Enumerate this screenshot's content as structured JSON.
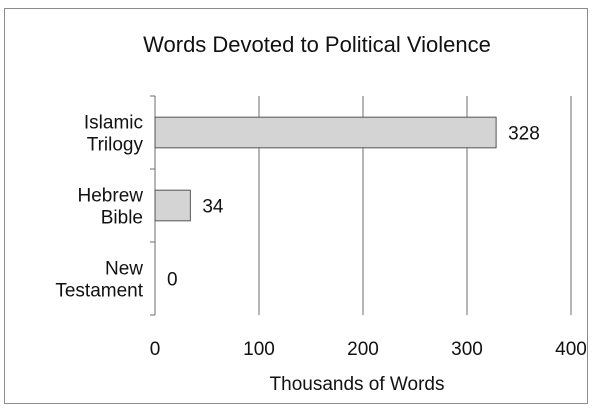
{
  "chart_data": {
    "type": "bar",
    "orientation": "horizontal",
    "title": "Words Devoted to Political Violence",
    "xlabel": "Thousands of Words",
    "ylabel": "",
    "categories": [
      [
        "Islamic",
        "Trilogy"
      ],
      [
        "Hebrew",
        "Bible"
      ],
      [
        "New",
        "Testament"
      ]
    ],
    "values": [
      328,
      34,
      0
    ],
    "data_labels": [
      "328",
      "34",
      "0"
    ],
    "xlim": [
      0,
      400
    ],
    "xticks": [
      0,
      100,
      200,
      300,
      400
    ],
    "grid": "vertical",
    "legend": "none",
    "colors": {
      "bar_fill": "#d4d4d4",
      "bar_stroke": "#555555",
      "grid": "#6e6e6e",
      "frame": "#8c8c8c"
    }
  }
}
